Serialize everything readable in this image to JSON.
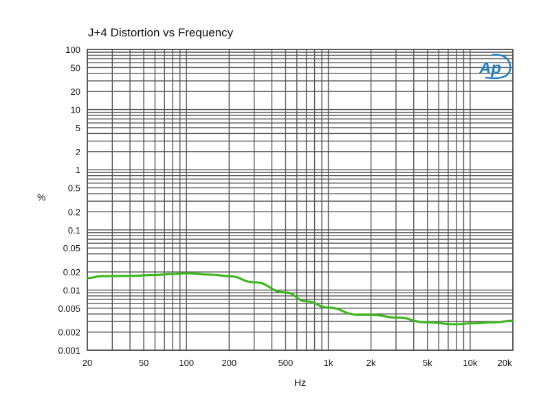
{
  "chart_data": {
    "type": "line",
    "title": "J+4 Distortion vs Frequency",
    "xlabel": "Hz",
    "ylabel": "%",
    "xscale": "log",
    "yscale": "log",
    "xlim": [
      20,
      20000
    ],
    "ylim": [
      0.001,
      100
    ],
    "grid": true,
    "x_ticks": [
      20,
      50,
      100,
      200,
      500,
      1000,
      2000,
      5000,
      10000,
      20000
    ],
    "x_tick_labels": [
      "20",
      "50",
      "100",
      "200",
      "500",
      "1k",
      "2k",
      "5k",
      "10k",
      "20k"
    ],
    "y_ticks": [
      100,
      50,
      20,
      10,
      5,
      2,
      1,
      0.5,
      0.2,
      0.1,
      0.05,
      0.02,
      0.01,
      0.005,
      0.002,
      0.001
    ],
    "y_tick_labels": [
      "100",
      "50",
      "20",
      "10",
      "5",
      "2",
      "1",
      "0.5",
      "0.2",
      "0.1",
      "0.05",
      "0.02",
      "0.01",
      "0.005",
      "0.002",
      "0.001"
    ],
    "series": [
      {
        "name": "J+4",
        "color": "#3cb81e",
        "x": [
          20,
          25,
          40,
          60,
          80,
          100,
          150,
          200,
          300,
          500,
          700,
          1000,
          1600,
          2000,
          3000,
          5000,
          8000,
          10000,
          15000,
          20000
        ],
        "y": [
          0.0158,
          0.017,
          0.0172,
          0.0178,
          0.0185,
          0.019,
          0.018,
          0.017,
          0.0135,
          0.0091,
          0.0065,
          0.0051,
          0.0039,
          0.0039,
          0.0035,
          0.0029,
          0.0027,
          0.0028,
          0.0029,
          0.0031
        ]
      }
    ]
  },
  "logo": {
    "text": "Ap",
    "color": "#1f7fc4"
  }
}
